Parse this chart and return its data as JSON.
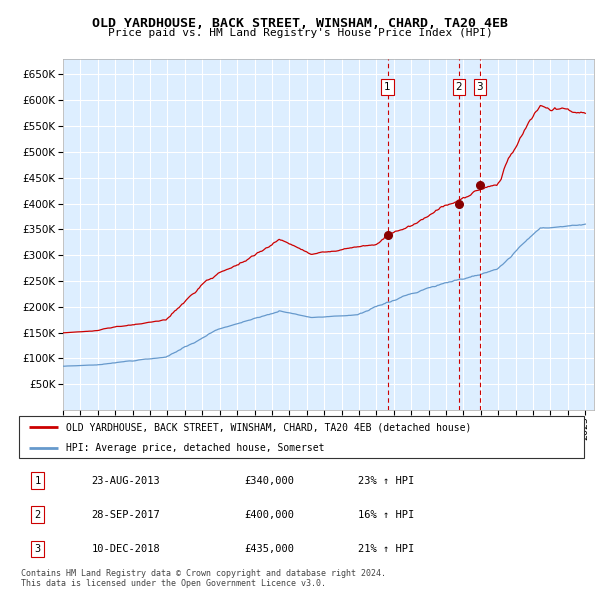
{
  "title": "OLD YARDHOUSE, BACK STREET, WINSHAM, CHARD, TA20 4EB",
  "subtitle": "Price paid vs. HM Land Registry's House Price Index (HPI)",
  "legend_line1": "OLD YARDHOUSE, BACK STREET, WINSHAM, CHARD, TA20 4EB (detached house)",
  "legend_line2": "HPI: Average price, detached house, Somerset",
  "footer1": "Contains HM Land Registry data © Crown copyright and database right 2024.",
  "footer2": "This data is licensed under the Open Government Licence v3.0.",
  "transactions": [
    {
      "num": "1",
      "date": "23-AUG-2013",
      "price": "£340,000",
      "pct": "23% ↑ HPI",
      "year": 2013.644
    },
    {
      "num": "2",
      "date": "28-SEP-2017",
      "price": "£400,000",
      "pct": "16% ↑ HPI",
      "year": 2017.747
    },
    {
      "num": "3",
      "date": "10-DEC-2018",
      "price": "£435,000",
      "pct": "21% ↑ HPI",
      "year": 2018.942
    }
  ],
  "t_prices": [
    340000,
    400000,
    435000
  ],
  "red_line_color": "#cc0000",
  "blue_line_color": "#6699cc",
  "plot_bg": "#ddeeff",
  "grid_color": "#ffffff",
  "dashed_line_color": "#cc0000",
  "marker_color": "#880000",
  "fig_bg": "#ffffff",
  "ylim": [
    0,
    680000
  ],
  "yticks": [
    50000,
    100000,
    150000,
    200000,
    250000,
    300000,
    350000,
    400000,
    450000,
    500000,
    550000,
    600000,
    650000
  ],
  "start_year": 1995,
  "end_year": 2025
}
